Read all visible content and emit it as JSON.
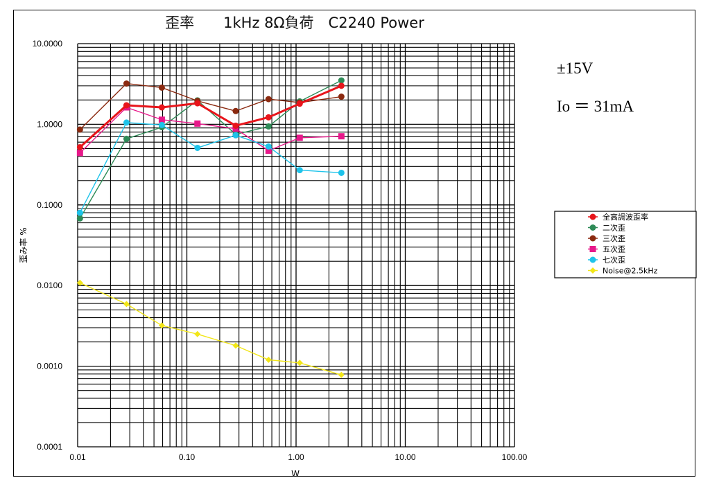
{
  "chart_data": {
    "type": "line",
    "title": "歪率　　1kHz 8Ω負荷　C2240 Power",
    "xlabel": "W",
    "ylabel": "歪み率 %",
    "xscale": "log",
    "yscale": "log",
    "xlim": [
      0.01,
      100
    ],
    "ylim": [
      0.0001,
      10
    ],
    "grid": true,
    "legend_position": "right",
    "x_tick_labels": [
      "0.01",
      "0.10",
      "1.00",
      "10.00",
      "100.00"
    ],
    "y_tick_labels": [
      "10.0000",
      "1.0000",
      "0.1000",
      "0.0100",
      "0.0010",
      "0.0001"
    ],
    "annotations": [
      "±15V",
      "Io ＝ 31mA"
    ],
    "x": [
      0.0105,
      0.028,
      0.059,
      0.125,
      0.28,
      0.56,
      1.08,
      2.6
    ],
    "series": [
      {
        "name": "全高調波歪率",
        "color": "#e8151b",
        "marker": "circle",
        "values": [
          0.52,
          1.72,
          1.62,
          1.82,
          0.96,
          1.22,
          1.8,
          3.0
        ]
      },
      {
        "name": "二次歪",
        "color": "#2e8b57",
        "marker": "circle",
        "values": [
          0.068,
          0.66,
          0.92,
          1.98,
          0.75,
          0.94,
          1.92,
          3.5
        ]
      },
      {
        "name": "三次歪",
        "color": "#8b2a10",
        "marker": "circle",
        "values": [
          0.86,
          3.2,
          2.85,
          1.95,
          1.46,
          2.05,
          1.86,
          2.2
        ]
      },
      {
        "name": "五次歪",
        "color": "#e7188a",
        "marker": "square",
        "values": [
          0.44,
          1.62,
          1.14,
          1.02,
          0.88,
          0.47,
          0.68,
          0.71
        ]
      },
      {
        "name": "七次歪",
        "color": "#1ec3ea",
        "marker": "circle",
        "values": [
          0.08,
          1.05,
          0.98,
          0.51,
          0.73,
          0.53,
          0.27,
          0.25
        ]
      },
      {
        "name": "Noise@2.5kHz",
        "color": "#f2e618",
        "marker": "diamond",
        "values": [
          0.0108,
          0.0059,
          0.0032,
          0.0025,
          0.0018,
          0.0012,
          0.0011,
          0.00078
        ]
      }
    ]
  }
}
